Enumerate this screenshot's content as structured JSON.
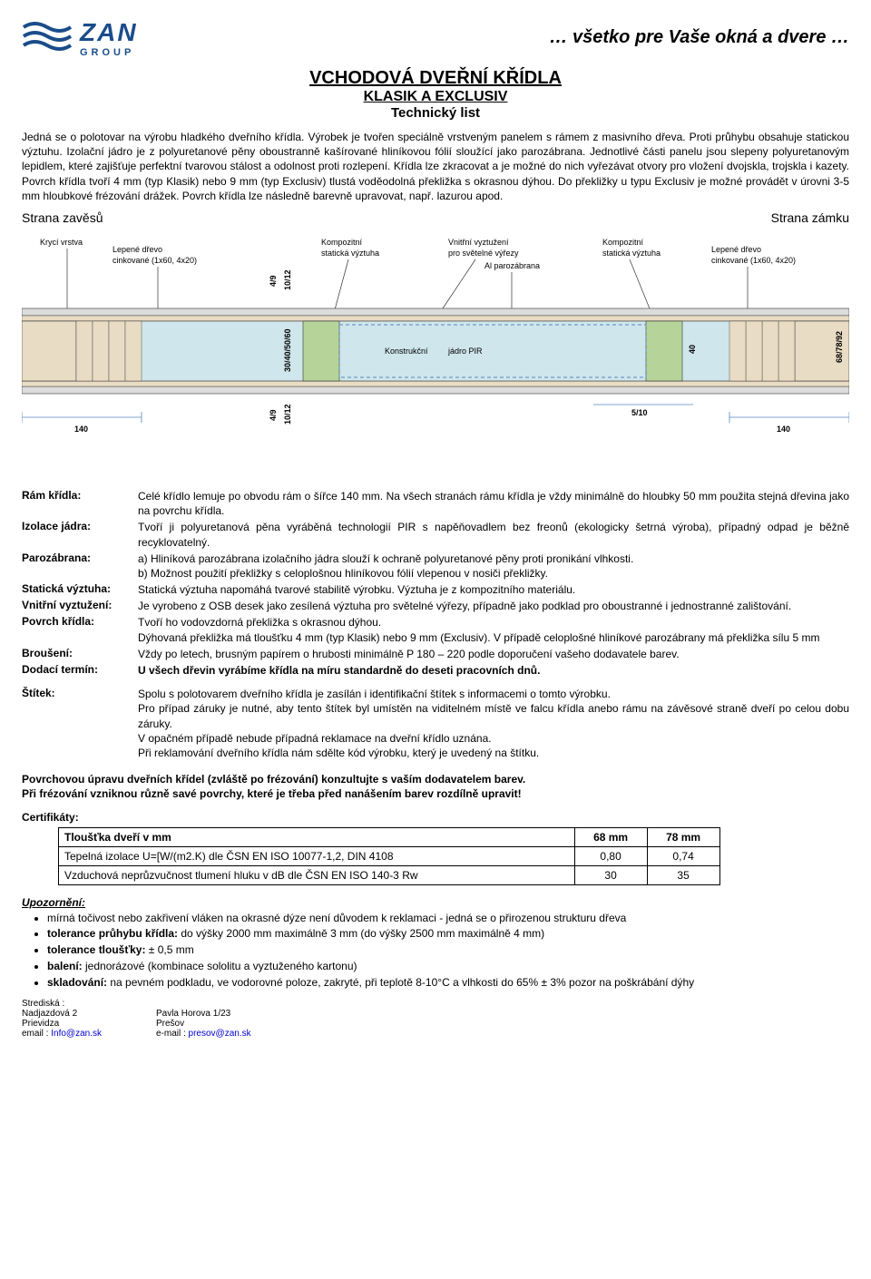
{
  "header": {
    "logo_color": "#1a4c8a",
    "brand": "ZAN",
    "brand_sub": "GROUP",
    "tagline": "… všetko pre Vaše okná a dvere …"
  },
  "title": {
    "line1": "VCHODOVÁ DVEŘNÍ KŘÍDLA",
    "line2": "KLASIK A EXCLUSIV",
    "line3": "Technický list"
  },
  "intro": "Jedná se o polotovar na výrobu hladkého dveřního křídla. Výrobek je tvořen speciálně vrstveným panelem s rámem z masivního dřeva. Proti průhybu obsahuje statickou výztuhu. Izolační jádro je z polyuretanové pěny oboustranně kašírované hliníkovou fólií sloužící jako parozábrana. Jednotlivé části panelu jsou slepeny polyuretanovým lepidlem, které zajišťuje perfektní tvarovou stálost a odolnost proti rozlepení. Křídla lze zkracovat a je možné do nich vyřezávat otvory pro vložení dvojskla, trojskla i kazety. Povrch křídla tvoří 4 mm (typ Klasik) nebo 9 mm (typ Exclusiv) tlustá voděodolná překližka s okrasnou dýhou. Do překližky u typu Exclusiv je možné provádět v úrovni 3-5 mm hloubkové frézování drážek. Povrch křídla lze následně barevně upravovat, např. lazurou apod.",
  "diagram": {
    "left_title": "Strana zavěsů",
    "right_title": "Strana zámku",
    "labels": {
      "kryci_vrstva": "Krycí vrstva",
      "lepene_drevo_l": "Lepené dřevo\ncinkované (1x60, 4x20)",
      "kompozitni_staticka": "Kompozitní\nstatická výztuha",
      "vnitrni_vyztuzeni": "Vnitřní vyztužení\npro světelné výřezy",
      "al_parozabrana": "Al parozábrana",
      "kompozitni_vyztuha": "Kompozitní\nstatická výztuha",
      "lepene_drevo_r": "Lepené dřevo\ncinkované (1x60, 4x20)",
      "konstrukcni": "Konstrukční",
      "jadro_pir": "jádro PIR"
    },
    "dims": {
      "d49": "4/9",
      "d1012": "10/12",
      "d30_60": "30/40/50/60",
      "d140_l": "140",
      "d140_r": "140",
      "d40": "40",
      "d510": "5/10",
      "d687892": "68/78/92"
    },
    "colors": {
      "outer_fill": "#dcdcdc",
      "wood_fill": "#e9dcc4",
      "core_fill": "#cfe6ec",
      "stiff_fill": "#b6d49a",
      "line": "#333333",
      "dim_line": "#5a88bb"
    }
  },
  "specs": [
    {
      "label": "Rám křídla:",
      "body": "Celé křídlo lemuje po obvodu rám o šířce 140 mm. Na všech stranách rámu křídla je vždy minimálně do hloubky 50 mm použita stejná dřevina jako na povrchu křídla."
    },
    {
      "label": "Izolace jádra:",
      "body": "Tvoří ji polyuretanová pěna vyráběná technologií PIR s napěňovadlem bez freonů (ekologicky šetrná výroba), případný odpad je běžně recyklovatelný."
    },
    {
      "label": "Parozábrana:",
      "body": "a) Hliníková parozábrana izolačního jádra slouží k ochraně polyuretanové pěny proti pronikání vlhkosti.\nb) Možnost použití překližky s celoplošnou hliníkovou fólií vlepenou v nosiči překližky."
    },
    {
      "label": "Statická výztuha:",
      "body": "Statická výztuha napomáhá tvarové stabilitě výrobku. Výztuha je z kompozitního materiálu."
    },
    {
      "label": "Vnitřní vyztužení:",
      "body": "Je vyrobeno z OSB desek jako zesílená výztuha pro světelné výřezy, případně jako podklad pro oboustranné i jednostranné zalištování."
    },
    {
      "label": "Povrch křídla:",
      "body": "Tvoří ho vodovzdorná překližka s okrasnou dýhou.\nDýhovaná překližka má tloušťku 4 mm (typ Klasik) nebo 9 mm (Exclusiv). V případě celoplošné hliníkové parozábrany má překližka sílu 5 mm"
    },
    {
      "label": "Broušení:",
      "body": "Vždy po letech, brusným papírem o hrubosti minimálně P 180 – 220 podle doporučení vašeho dodavatele barev."
    },
    {
      "label": "Dodací termín:",
      "body": "U všech dřevin vyrábíme křídla na míru standardně do deseti pracovních dnů."
    },
    {
      "label": "Štítek:",
      "body": "Spolu s polotovarem dveřního křídla je zasílán i identifikační štítek s informacemi o tomto výrobku.\nPro případ záruky je nutné, aby tento štítek byl umístěn na viditelném místě ve falcu křídla anebo rámu na závěsové straně dveří po celou dobu záruky.\nV opačném případě nebude případná reklamace na dveřní křídlo uznána.\nPři reklamování dveřního křídla nám sdělte kód výrobku, který je uvedený na štítku."
    }
  ],
  "notes": {
    "line1": "Povrchovou úpravu dveřních křídel (zvláště po frézování) konzultujte s vaším dodavatelem barev.",
    "line2": "Při frézování vzniknou různě savé povrchy, které je třeba před nanášením barev rozdílně upravit!"
  },
  "certs": {
    "heading": "Certifikáty:",
    "col0": "Tloušťka dveří v mm",
    "col1": "68 mm",
    "col2": "78 mm",
    "rows": [
      {
        "label": "Tepelná izolace U=[W/(m2.K) dle ČSN EN ISO 10077-1,2, DIN 4108",
        "v1": "0,80",
        "v2": "0,74"
      },
      {
        "label": "Vzduchová neprůzvučnost tlumení hluku v dB dle ČSN EN ISO 140-3 Rw",
        "v1": "30",
        "v2": "35"
      }
    ]
  },
  "notice": {
    "heading": "Upozornění:",
    "items": [
      {
        "text": "mírná točivost nebo zakřivení vláken na okrasné dýze není důvodem k reklamaci - jedná se o přirozenou strukturu dřeva"
      },
      {
        "key": "tolerance průhybu křídla:",
        "text": "do výšky 2000 mm maximálně 3 mm (do výšky 2500 mm maximálně 4 mm)"
      },
      {
        "key": "tolerance tloušťky:",
        "text": "± 0,5 mm"
      },
      {
        "key": "balení:",
        "text": "jednorázové (kombinace sololitu a vyztuženého kartonu)"
      },
      {
        "key": "skladování:",
        "text": "na pevném podkladu, ve vodorovné poloze, zakryté, při teplotě 8-10°C a vlhkosti do 65% ± 3% pozor na poškrábání dýhy"
      }
    ]
  },
  "footer": {
    "strediska": "Strediská :",
    "col1": {
      "l1": "Nadjazdová 2",
      "l2": "Prievidza",
      "l3_pre": "email : ",
      "l3": "Info@zan.sk"
    },
    "col2": {
      "l1": "Pavla Horova 1/23",
      "l2": "Prešov",
      "l3_pre": "e-mail : ",
      "l3": "presov@zan.sk"
    }
  }
}
